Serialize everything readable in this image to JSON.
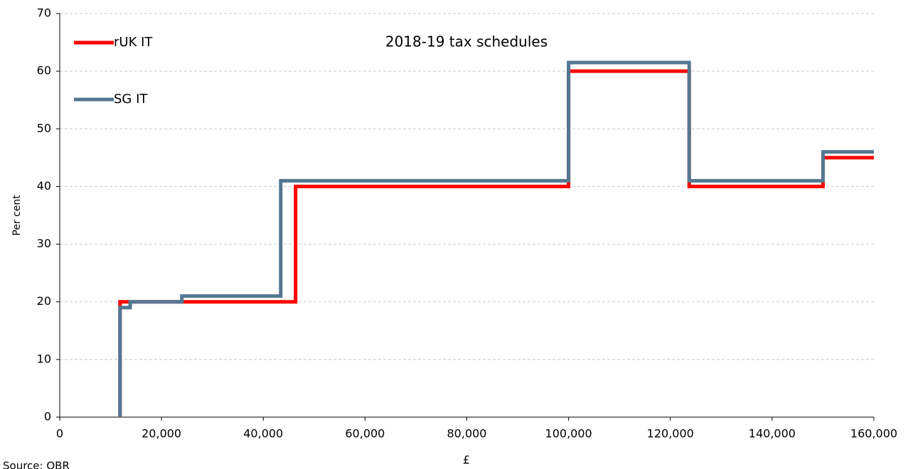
{
  "chart_data": {
    "type": "line",
    "step": true,
    "title": "2018-19  tax schedules",
    "x_label": "£",
    "y_label": "Per cent",
    "source": "Source: OBR",
    "xlim": [
      0,
      160000
    ],
    "ylim": [
      0,
      70
    ],
    "xticks": [
      0,
      {
        "value": 20000,
        "label": "20,000"
      },
      {
        "value": 40000,
        "label": "40,000"
      },
      {
        "value": 60000,
        "label": "60,000"
      },
      {
        "value": 80000,
        "label": "80,000"
      },
      {
        "value": 100000,
        "label": "100,000"
      },
      {
        "value": 120000,
        "label": "120,000"
      },
      {
        "value": 140000,
        "label": "140,000"
      },
      {
        "value": 160000,
        "label": "160,000"
      }
    ],
    "yticks": [
      0,
      10,
      20,
      30,
      40,
      50,
      60,
      70
    ],
    "grid": true,
    "legend": "top-left",
    "series": [
      {
        "name": "rUK IT",
        "color": "#ff0000",
        "x": [
          11850,
          11850,
          46350,
          46350,
          100000,
          100000,
          123700,
          123700,
          150000,
          150000,
          160000
        ],
        "values": [
          0,
          20,
          20,
          40,
          40,
          60,
          60,
          40,
          40,
          45,
          45
        ]
      },
      {
        "name": "SG IT",
        "color": "#547891",
        "x": [
          11850,
          11850,
          13850,
          13850,
          24000,
          24000,
          43430,
          43430,
          100000,
          100000,
          123700,
          123700,
          150000,
          150000,
          160000
        ],
        "values": [
          0,
          19,
          19,
          20,
          20,
          21,
          21,
          41,
          41,
          61.5,
          61.5,
          41,
          41,
          46,
          46
        ]
      }
    ]
  }
}
